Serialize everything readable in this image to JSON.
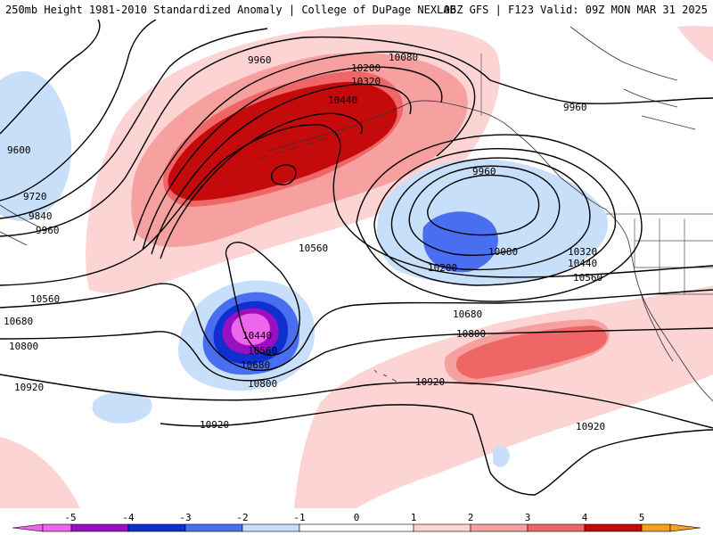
{
  "header": {
    "left": "250mb Height 1981-2010 Standardized Anomaly | College of DuPage NEXLAB",
    "right": "06Z GFS | F123 Valid: 09Z MON MAR 31 2025"
  },
  "colors": {
    "m5": "#ee66ee",
    "m4": "#9a0fbf",
    "m3": "#0f2fcf",
    "m2": "#4a6ef0",
    "m1": "#c8dffa",
    "p1": "#fcd4d4",
    "p2": "#f7a0a0",
    "p3": "#ee6666",
    "p4": "#c40a0a",
    "p5": "#f4a020"
  },
  "contour_labels": [
    {
      "id": "c9960a",
      "text": "9960"
    },
    {
      "id": "c10080a",
      "text": "10080"
    },
    {
      "id": "c10200a",
      "text": "10200"
    },
    {
      "id": "c10320a",
      "text": "10320"
    },
    {
      "id": "c10440a",
      "text": "10440"
    },
    {
      "id": "c9960b",
      "text": "9960"
    },
    {
      "id": "c9600",
      "text": "9600"
    },
    {
      "id": "c9720",
      "text": "9720"
    },
    {
      "id": "c9840",
      "text": "9840"
    },
    {
      "id": "c9960c",
      "text": "9960"
    },
    {
      "id": "c9960d",
      "text": "9960"
    },
    {
      "id": "c10560a",
      "text": "10560"
    },
    {
      "id": "c10080b",
      "text": "10080"
    },
    {
      "id": "c10200b",
      "text": "10200"
    },
    {
      "id": "c10320b",
      "text": "10320"
    },
    {
      "id": "c10440b",
      "text": "10440"
    },
    {
      "id": "c10560b",
      "text": "10560"
    },
    {
      "id": "c10560c",
      "text": "10560"
    },
    {
      "id": "c10680a",
      "text": "10680"
    },
    {
      "id": "c10680b",
      "text": "10680"
    },
    {
      "id": "c10800a",
      "text": "10800"
    },
    {
      "id": "c10800b",
      "text": "10800"
    },
    {
      "id": "c10440c",
      "text": "10440"
    },
    {
      "id": "c10560d",
      "text": "10560"
    },
    {
      "id": "c10680c",
      "text": "10680"
    },
    {
      "id": "c10800c",
      "text": "10800"
    },
    {
      "id": "c10920a",
      "text": "10920"
    },
    {
      "id": "c10920b",
      "text": "10920"
    },
    {
      "id": "c10920c",
      "text": "10920"
    },
    {
      "id": "c10920d",
      "text": "10920"
    }
  ],
  "colorbar": {
    "ticks": [
      "-5",
      "-4",
      "-3",
      "-2",
      "-1",
      "0",
      "1",
      "2",
      "3",
      "4",
      "5"
    ]
  }
}
